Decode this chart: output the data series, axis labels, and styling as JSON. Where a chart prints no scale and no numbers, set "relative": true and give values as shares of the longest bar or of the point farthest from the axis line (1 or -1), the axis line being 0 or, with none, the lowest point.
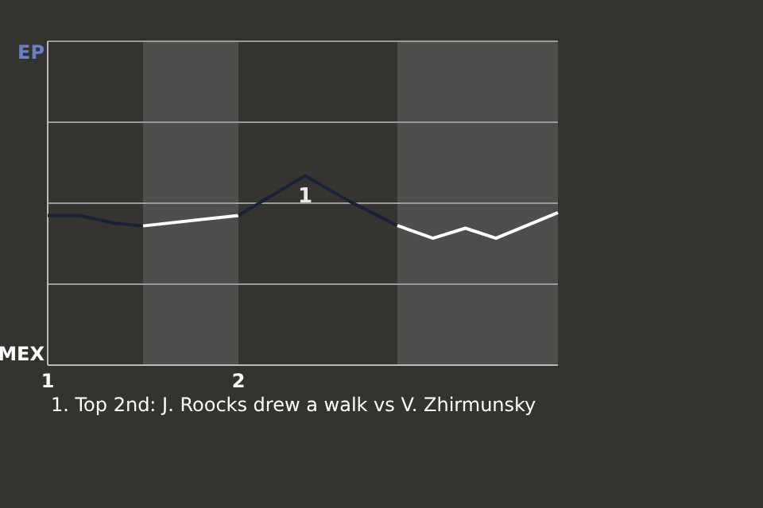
{
  "chart_data": {
    "type": "line",
    "relative": true,
    "xlim": [
      1,
      3.675
    ],
    "xticks": [
      1,
      2
    ],
    "marker": "none",
    "line_style": "solid",
    "ref_lines": [
      {
        "axis": "y",
        "value": 0.4275,
        "color": "#9a9a9a"
      },
      {
        "axis": "y",
        "value": 0.855,
        "color": "#9a9a9a"
      },
      {
        "axis": "y",
        "value": 1.2825,
        "color": "#9a9a9a"
      }
    ],
    "series": [
      {
        "color": "#1a2238",
        "x": [
          1,
          1.167,
          1.35,
          1.5
        ],
        "values": [
          0.79,
          0.79,
          0.749,
          0.735
        ]
      },
      {
        "color": "#ffffff",
        "x": [
          1.5,
          2
        ],
        "values": [
          0.735,
          0.79
        ]
      },
      {
        "color": "#1a2238",
        "x": [
          2,
          2.35,
          2.583,
          2.833
        ],
        "values": [
          0.79,
          1,
          0.865,
          0.737
        ]
      },
      {
        "color": "#ffffff",
        "x": [
          2.833,
          3.02,
          3.19,
          3.35,
          3.675
        ],
        "values": [
          0.737,
          0.67,
          0.723,
          0.67,
          0.805
        ]
      }
    ],
    "bands": [
      {
        "axis": "x",
        "from": 1.5,
        "to": 2,
        "color": "#4f4e4c"
      },
      {
        "axis": "x",
        "from": 2.833,
        "to": 3.675,
        "color": "#4f4e4c"
      }
    ],
    "annotations": [
      "EP",
      "MEX",
      {
        "text": "1",
        "x": 2.35,
        "y": 1
      },
      "1. Top 2nd: J. Roocks drew a walk vs V. Zhirmunsky"
    ]
  }
}
